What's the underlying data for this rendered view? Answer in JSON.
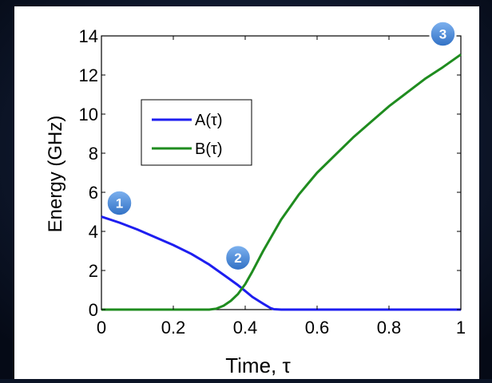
{
  "chart_data": {
    "type": "line",
    "xlabel": "Time, τ",
    "ylabel": "Energy (GHz)",
    "xlim": [
      0,
      1
    ],
    "ylim": [
      0,
      14
    ],
    "xticks": [
      0,
      0.2,
      0.4,
      0.6,
      0.8,
      1
    ],
    "xtick_labels": [
      "0",
      "0.2",
      "0.4",
      "0.6",
      "0.8",
      "1"
    ],
    "yticks": [
      0,
      2,
      4,
      6,
      8,
      10,
      12,
      14
    ],
    "ytick_labels": [
      "0",
      "2",
      "4",
      "6",
      "8",
      "10",
      "12",
      "14"
    ],
    "grid": false,
    "legend_position": "upper-left",
    "series": [
      {
        "name": "A(τ)",
        "color": "#1e1ef0",
        "x": [
          0,
          0.05,
          0.1,
          0.15,
          0.2,
          0.25,
          0.3,
          0.35,
          0.38,
          0.4,
          0.42,
          0.45,
          0.47,
          0.48,
          0.5,
          0.6,
          0.7,
          0.8,
          0.9,
          1.0
        ],
        "y": [
          4.75,
          4.45,
          4.1,
          3.7,
          3.3,
          2.85,
          2.3,
          1.65,
          1.25,
          0.95,
          0.65,
          0.3,
          0.08,
          0.02,
          0,
          0,
          0,
          0,
          0,
          0
        ]
      },
      {
        "name": "B(τ)",
        "color": "#1f8c1f",
        "x": [
          0,
          0.1,
          0.2,
          0.3,
          0.32,
          0.34,
          0.36,
          0.38,
          0.4,
          0.42,
          0.45,
          0.5,
          0.55,
          0.6,
          0.65,
          0.7,
          0.75,
          0.8,
          0.85,
          0.9,
          0.95,
          1.0
        ],
        "y": [
          0,
          0,
          0,
          0,
          0.05,
          0.2,
          0.45,
          0.8,
          1.3,
          1.95,
          3.0,
          4.6,
          5.9,
          7.0,
          7.9,
          8.8,
          9.6,
          10.4,
          11.1,
          11.8,
          12.4,
          13.05
        ]
      }
    ],
    "annotations": [
      {
        "label": "1",
        "x": 0.05,
        "y": 5.45
      },
      {
        "label": "2",
        "x": 0.38,
        "y": 2.65
      },
      {
        "label": "3",
        "x": 0.95,
        "y": 14.1
      }
    ]
  },
  "colors": {
    "background": "#0b1426",
    "panel": "#ffffff",
    "axis": "#000000",
    "marker_fill": "#4a8bd8",
    "marker_text": "#ffffff"
  }
}
